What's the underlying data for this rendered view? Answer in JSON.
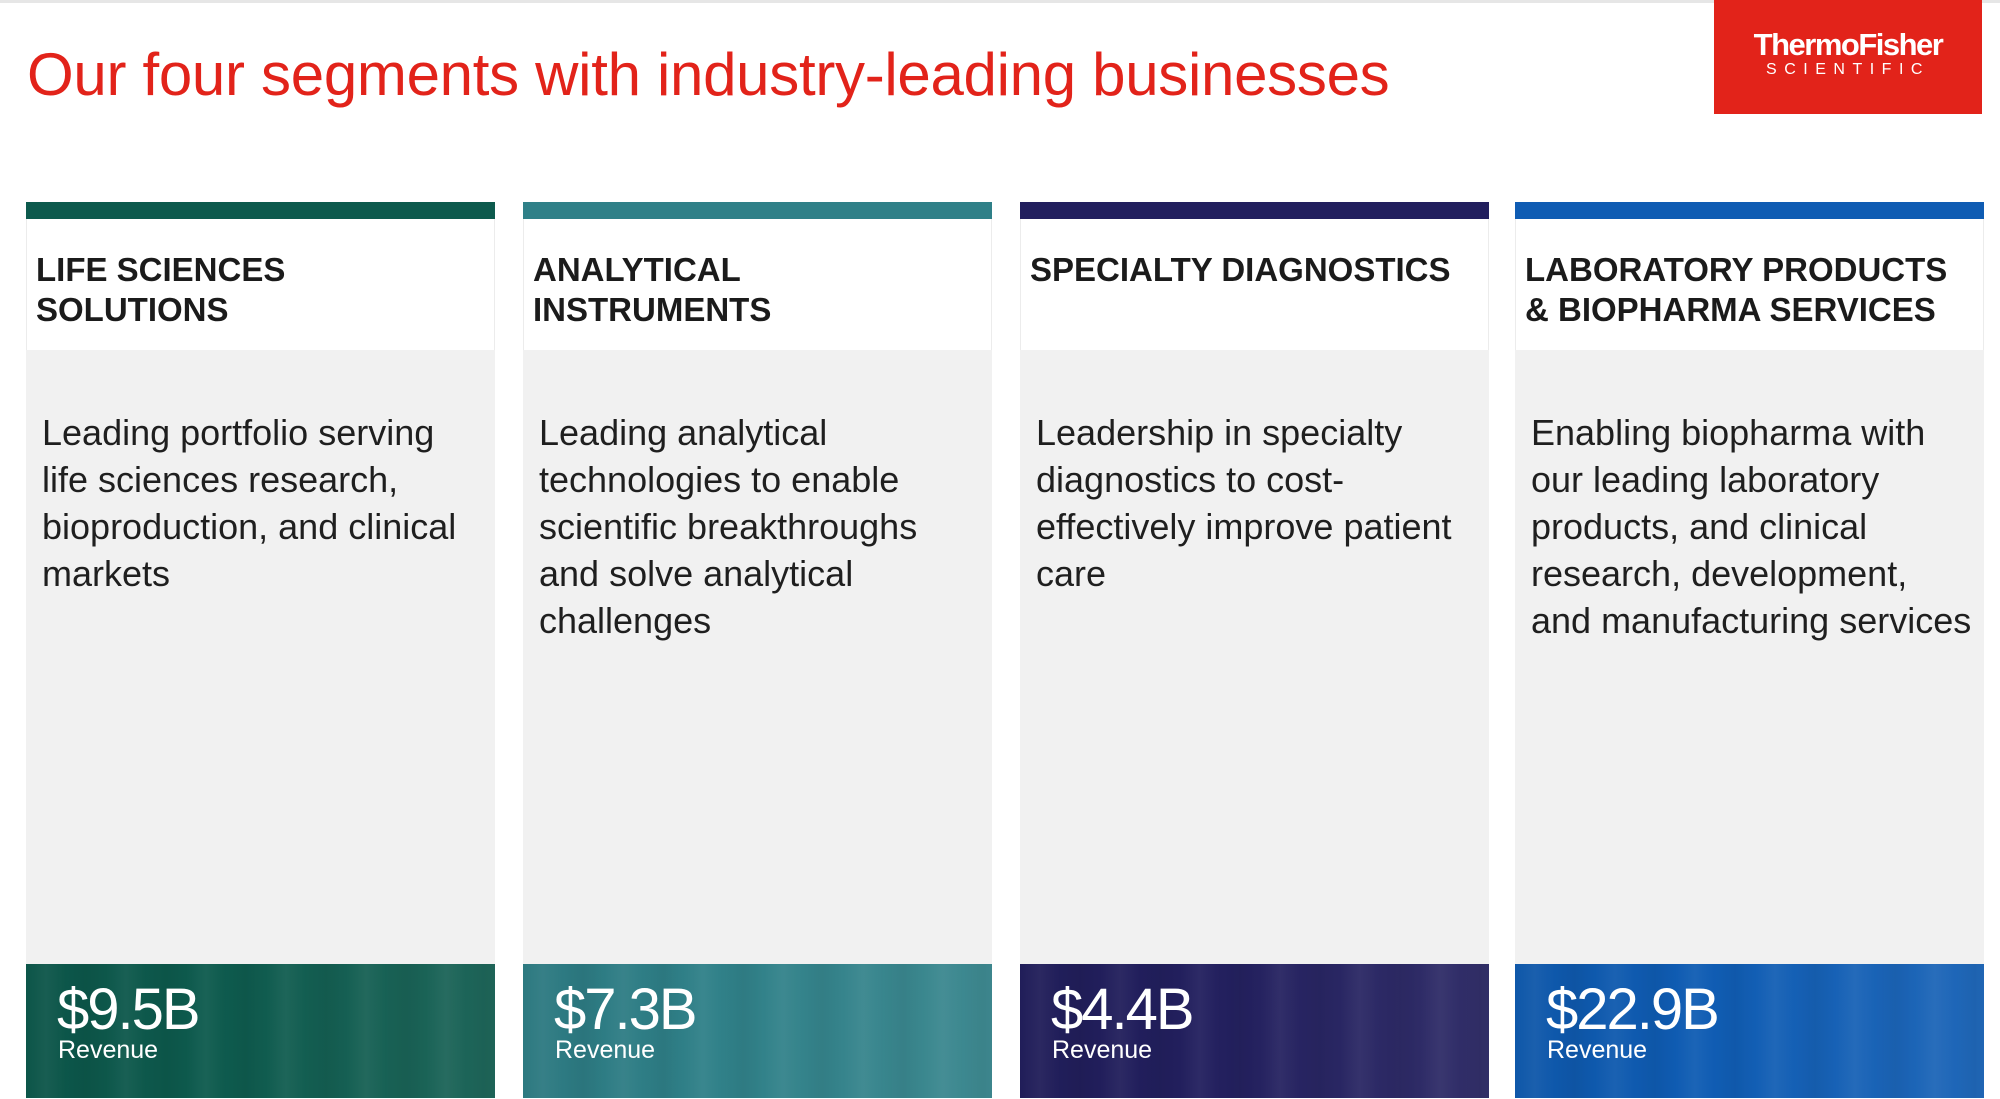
{
  "title": "Our four segments with industry-leading businesses",
  "logo": {
    "main": "ThermoFisher",
    "sub": "SCIENTIFIC",
    "color": "#e2231a"
  },
  "segments": [
    {
      "name": "LIFE SCIENCES\nSOLUTIONS",
      "description": "Leading portfolio serving life sciences research, bioproduction, and clinical markets",
      "revenue": "$9.5B",
      "revenue_label": "Revenue",
      "color": "#0d5a4d"
    },
    {
      "name": "ANALYTICAL\nINSTRUMENTS",
      "description": "Leading analytical technologies to enable scientific breakthroughs and solve analytical challenges",
      "revenue": "$7.3B",
      "revenue_label": "Revenue",
      "color": "#2f8088"
    },
    {
      "name": "SPECIALTY DIAGNOSTICS",
      "description": "Leadership in specialty diagnostics to cost-effectively improve patient care",
      "revenue": "$4.4B",
      "revenue_label": "Revenue",
      "color": "#221f5e"
    },
    {
      "name": "LABORATORY PRODUCTS\n& BIOPHARMA SERVICES",
      "description": "Enabling biopharma with our leading laboratory products, and clinical research, development, and manufacturing services",
      "revenue": "$22.9B",
      "revenue_label": "Revenue",
      "color": "#0f5cb3"
    }
  ]
}
